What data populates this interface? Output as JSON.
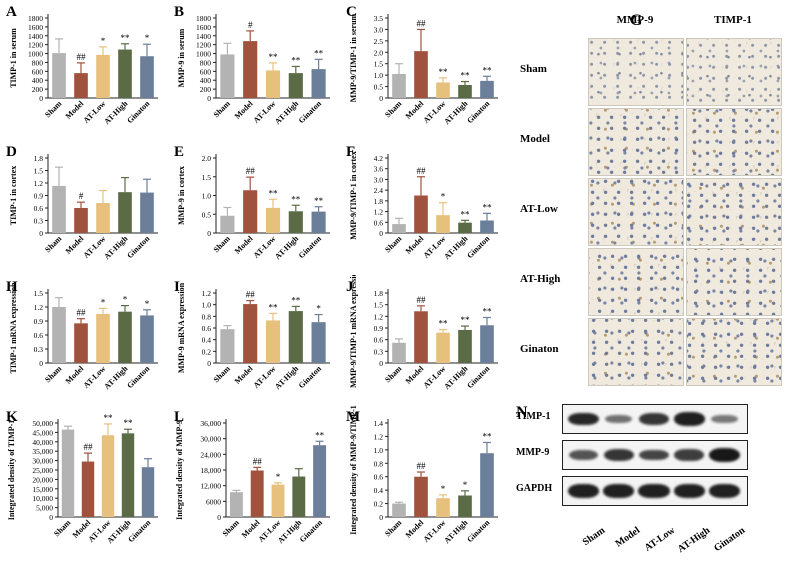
{
  "chart_data": [
    {
      "panel": "A",
      "type": "bar",
      "ylabel": "TIMP-1 in serum",
      "ylim": [
        0,
        1800
      ],
      "ticks": [
        0,
        200,
        400,
        600,
        800,
        1000,
        1200,
        1400,
        1600,
        1800
      ],
      "categories": [
        "Sham",
        "Model",
        "AT-Low",
        "AT-High",
        "Ginaton"
      ],
      "values": [
        1010,
        560,
        970,
        1090,
        940
      ],
      "errors": [
        320,
        230,
        180,
        130,
        270
      ],
      "marks": [
        "",
        "##",
        "*",
        "**",
        "*"
      ]
    },
    {
      "panel": "B",
      "type": "bar",
      "ylabel": "MMP-9 in serum",
      "ylim": [
        0,
        1800
      ],
      "ticks": [
        0,
        200,
        400,
        600,
        800,
        1000,
        1200,
        1400,
        1600,
        1800
      ],
      "categories": [
        "Sham",
        "Model",
        "AT-Low",
        "AT-High",
        "Ginaton"
      ],
      "values": [
        980,
        1280,
        620,
        560,
        650
      ],
      "errors": [
        250,
        230,
        170,
        150,
        220
      ],
      "marks": [
        "",
        "#",
        "**",
        "**",
        "**"
      ]
    },
    {
      "panel": "C",
      "type": "bar",
      "ylabel": "MMP-9/TIMP-1 in serum",
      "ylim": [
        0,
        3.5
      ],
      "ticks": [
        0,
        0.5,
        1.0,
        1.5,
        2.0,
        2.5,
        3.0,
        3.5
      ],
      "categories": [
        "Sham",
        "Model",
        "AT-Low",
        "AT-High",
        "Ginaton"
      ],
      "values": [
        1.05,
        2.05,
        0.68,
        0.57,
        0.75
      ],
      "errors": [
        0.45,
        0.95,
        0.2,
        0.15,
        0.2
      ],
      "marks": [
        "",
        "##",
        "**",
        "**",
        "**"
      ]
    },
    {
      "panel": "D",
      "type": "bar",
      "ylabel": "TIMP-1 in cortex",
      "ylim": [
        0,
        1.8
      ],
      "ticks": [
        0,
        0.3,
        0.6,
        0.9,
        1.2,
        1.5,
        1.8
      ],
      "categories": [
        "Sham",
        "Model",
        "AT-Low",
        "AT-High",
        "Ginaton"
      ],
      "values": [
        1.13,
        0.6,
        0.72,
        0.98,
        0.97
      ],
      "errors": [
        0.45,
        0.14,
        0.3,
        0.35,
        0.32
      ],
      "marks": [
        "",
        "#",
        "",
        "",
        ""
      ]
    },
    {
      "panel": "E",
      "type": "bar",
      "ylabel": "MMP-9 in cortex",
      "ylim": [
        0,
        2.0
      ],
      "ticks": [
        0,
        0.5,
        1.0,
        1.5,
        2.0
      ],
      "categories": [
        "Sham",
        "Model",
        "AT-Low",
        "AT-High",
        "Ginaton"
      ],
      "values": [
        0.46,
        1.14,
        0.67,
        0.58,
        0.57
      ],
      "errors": [
        0.22,
        0.35,
        0.23,
        0.16,
        0.13
      ],
      "marks": [
        "",
        "##",
        "**",
        "**",
        "**"
      ]
    },
    {
      "panel": "F",
      "type": "bar",
      "ylabel": "MMP-9/TIMP-1 in cortex",
      "ylim": [
        0,
        4.2
      ],
      "ticks": [
        0,
        0.6,
        1.2,
        1.8,
        2.4,
        3.0,
        3.6,
        4.2
      ],
      "categories": [
        "Sham",
        "Model",
        "AT-Low",
        "AT-High",
        "Ginaton"
      ],
      "values": [
        0.5,
        2.1,
        1.0,
        0.58,
        0.7
      ],
      "errors": [
        0.32,
        1.05,
        0.7,
        0.13,
        0.4
      ],
      "marks": [
        "",
        "##",
        "*",
        "**",
        "**"
      ]
    },
    {
      "panel": "H",
      "type": "bar",
      "ylabel": "TIMP-1 mRNA expression",
      "ylim": [
        0,
        1.5
      ],
      "ticks": [
        0,
        0.3,
        0.6,
        0.9,
        1.2,
        1.5
      ],
      "categories": [
        "Sham",
        "Model",
        "AT-Low",
        "AT-High",
        "Ginaton"
      ],
      "values": [
        1.2,
        0.85,
        1.05,
        1.1,
        1.02
      ],
      "errors": [
        0.2,
        0.1,
        0.12,
        0.13,
        0.12
      ],
      "marks": [
        "",
        "##",
        "*",
        "*",
        "*"
      ]
    },
    {
      "panel": "I",
      "type": "bar",
      "ylabel": "MMP-9 mRNA expression",
      "ylim": [
        0,
        1.2
      ],
      "ticks": [
        0,
        0.2,
        0.4,
        0.6,
        0.8,
        1.0,
        1.2
      ],
      "categories": [
        "Sham",
        "Model",
        "AT-Low",
        "AT-High",
        "Ginaton"
      ],
      "values": [
        0.58,
        1.01,
        0.73,
        0.89,
        0.7
      ],
      "errors": [
        0.06,
        0.06,
        0.12,
        0.08,
        0.13
      ],
      "marks": [
        "",
        "##",
        "**",
        "**",
        "*"
      ]
    },
    {
      "panel": "J",
      "type": "bar",
      "ylabel": "MMP-9/TIMP-1 mRNA expression",
      "ylim": [
        0,
        1.8
      ],
      "ticks": [
        0,
        0.3,
        0.6,
        0.9,
        1.2,
        1.5,
        1.8
      ],
      "categories": [
        "Sham",
        "Model",
        "AT-Low",
        "AT-High",
        "Ginaton"
      ],
      "values": [
        0.52,
        1.33,
        0.78,
        0.85,
        0.97
      ],
      "errors": [
        0.1,
        0.14,
        0.08,
        0.1,
        0.2
      ],
      "marks": [
        "",
        "##",
        "**",
        "**",
        "**"
      ]
    },
    {
      "panel": "K",
      "type": "bar",
      "ylabel": "Integrated density of TIMP-1",
      "ylim": [
        0,
        50000
      ],
      "ticks": [
        0,
        5000,
        10000,
        15000,
        20000,
        25000,
        30000,
        35000,
        40000,
        45000,
        50000
      ],
      "tick_labels": [
        "0",
        "5,000",
        "10,000",
        "15,000",
        "20,000",
        "25,000",
        "30,000",
        "35,000",
        "40,000",
        "45,000",
        "50,000"
      ],
      "categories": [
        "Sham",
        "Model",
        "AT-Low",
        "AT-High",
        "Ginaton"
      ],
      "values": [
        46500,
        29500,
        43500,
        44500,
        26500
      ],
      "errors": [
        1800,
        4500,
        6000,
        2200,
        4500
      ],
      "marks": [
        "",
        "##",
        "**",
        "**",
        ""
      ]
    },
    {
      "panel": "L",
      "type": "bar",
      "ylabel": "Integrated density of MMP-9",
      "ylim": [
        0,
        36000
      ],
      "ticks": [
        0,
        6000,
        12000,
        18000,
        24000,
        30000,
        36000
      ],
      "tick_labels": [
        "0",
        "6000",
        "12,000",
        "18,000",
        "24,000",
        "30,000",
        "36,000"
      ],
      "categories": [
        "Sham",
        "Model",
        "AT-Low",
        "AT-High",
        "Ginaton"
      ],
      "values": [
        9500,
        17800,
        12400,
        15500,
        27500
      ],
      "errors": [
        700,
        1200,
        700,
        3000,
        1500
      ],
      "marks": [
        "",
        "##",
        "*",
        "",
        "**"
      ]
    },
    {
      "panel": "M",
      "type": "bar",
      "ylabel": "Integrated density of MMP-9/TIMP-1",
      "ylim": [
        0,
        1.4
      ],
      "ticks": [
        0,
        0.2,
        0.4,
        0.6,
        0.8,
        1.0,
        1.2,
        1.4
      ],
      "categories": [
        "Sham",
        "Model",
        "AT-Low",
        "AT-High",
        "Ginaton"
      ],
      "values": [
        0.2,
        0.6,
        0.28,
        0.32,
        0.95
      ],
      "errors": [
        0.02,
        0.07,
        0.05,
        0.07,
        0.16
      ],
      "marks": [
        "",
        "##",
        "*",
        "*",
        "**"
      ]
    }
  ],
  "colors": {
    "Sham": "#b3b3b3",
    "Model": "#a0523d",
    "AT-Low": "#e8c07e",
    "AT-High": "#5a6b45",
    "Ginaton": "#6b7f9a"
  },
  "histology": {
    "label": "G",
    "columns": [
      "MMP-9",
      "TIMP-1"
    ],
    "rows": [
      "Sham",
      "Model",
      "AT-Low",
      "AT-High",
      "Ginaton"
    ]
  },
  "western": {
    "label": "N",
    "rows": [
      "TIMP-1",
      "MMP-9",
      "GAPDH"
    ],
    "lanes": [
      "Sham",
      "Model",
      "AT-Low",
      "AT-High",
      "Ginaton"
    ],
    "intensities": [
      [
        0.85,
        0.35,
        0.75,
        0.9,
        0.3
      ],
      [
        0.55,
        0.75,
        0.65,
        0.7,
        0.95
      ],
      [
        0.9,
        0.9,
        0.9,
        0.9,
        0.9
      ]
    ]
  }
}
